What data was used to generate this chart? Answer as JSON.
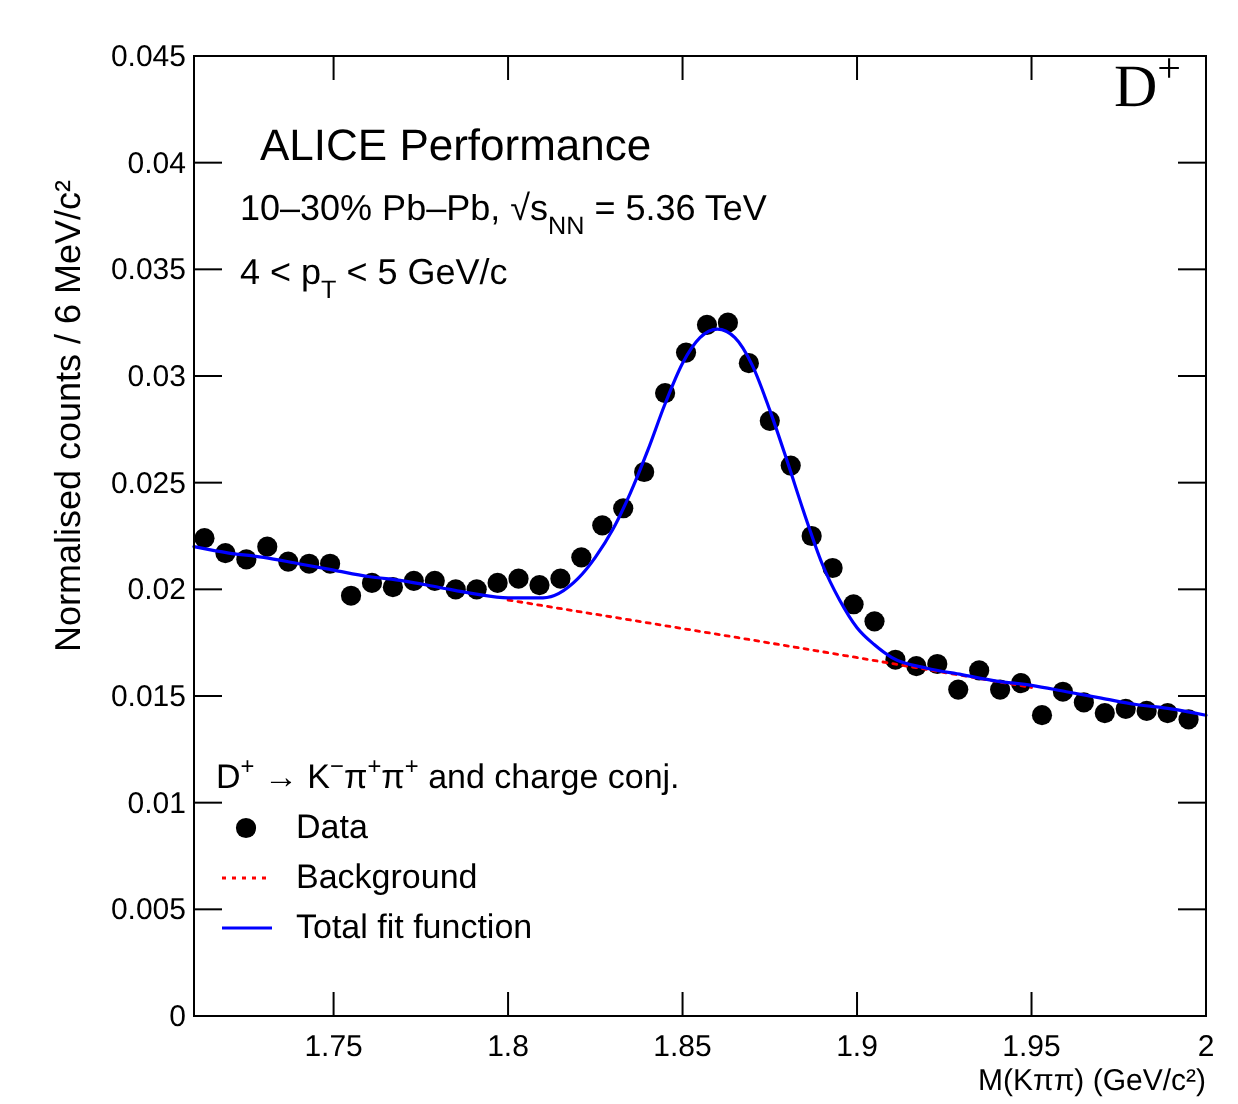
{
  "chart_data": {
    "type": "scatter",
    "xlabel": "M(Kππ) (GeV/c²)",
    "ylabel": "Normalised counts / 6 MeV/c²",
    "annotations": [
      "ALICE Performance",
      "10–30% Pb–Pb, √s$_{NN}$ = 5.36 TeV",
      "4 < p$_{T}$ < 5 GeV/c",
      "D$^{+}$"
    ],
    "legend_title": "D$^{+}$ → K$^{−}$π$^{+}$π$^{+}$ and charge conj.",
    "legend": "bottom left",
    "grid": false,
    "xlim": [
      1.71,
      2.0
    ],
    "xticks": [
      1.75,
      1.8,
      1.85,
      1.9,
      1.95,
      2
    ],
    "ylim": [
      0,
      0.045
    ],
    "yticks": [
      0,
      0.005,
      0.01,
      0.015,
      0.02,
      0.025,
      0.03,
      0.035,
      0.04,
      0.045
    ],
    "series": [
      {
        "name": "Data",
        "marker": "circle",
        "color": "#000000",
        "x": [
          1.713,
          1.719,
          1.725,
          1.731,
          1.737,
          1.743,
          1.749,
          1.755,
          1.761,
          1.767,
          1.773,
          1.779,
          1.785,
          1.791,
          1.797,
          1.803,
          1.809,
          1.815,
          1.821,
          1.827,
          1.833,
          1.839,
          1.845,
          1.851,
          1.857,
          1.863,
          1.869,
          1.875,
          1.881,
          1.887,
          1.893,
          1.899,
          1.905,
          1.911,
          1.917,
          1.923,
          1.929,
          1.935,
          1.941,
          1.947,
          1.953,
          1.959,
          1.965,
          1.971,
          1.977,
          1.983,
          1.989,
          1.995
        ],
        "values": [
          0.0224,
          0.0217,
          0.0214,
          0.022,
          0.0213,
          0.0212,
          0.0212,
          0.0197,
          0.0203,
          0.0201,
          0.0204,
          0.0204,
          0.02,
          0.02,
          0.0203,
          0.0205,
          0.0202,
          0.0205,
          0.0215,
          0.023,
          0.0238,
          0.0255,
          0.0292,
          0.0311,
          0.0324,
          0.0325,
          0.0306,
          0.0279,
          0.0258,
          0.0225,
          0.021,
          0.0193,
          0.0185,
          0.0167,
          0.0164,
          0.0165,
          0.0153,
          0.0162,
          0.0153,
          0.0156,
          0.0141,
          0.0152,
          0.0147,
          0.0142,
          0.0144,
          0.0143,
          0.0142,
          0.0139
        ]
      },
      {
        "name": "Background",
        "type": "line",
        "line_style": "dotted",
        "color": "#ff0000",
        "x": [
          1.8,
          1.9,
          1.95
        ],
        "values": [
          0.0195,
          0.0168,
          0.0154
        ]
      },
      {
        "name": "Total fit function",
        "type": "line",
        "line_style": "solid",
        "color": "#0000ff",
        "x": [
          1.71,
          1.72,
          1.73,
          1.74,
          1.75,
          1.76,
          1.77,
          1.78,
          1.79,
          1.8,
          1.81,
          1.82,
          1.825,
          1.83,
          1.835,
          1.84,
          1.845,
          1.85,
          1.855,
          1.86,
          1.865,
          1.87,
          1.875,
          1.88,
          1.885,
          1.89,
          1.895,
          1.9,
          1.905,
          1.91,
          1.92,
          1.93,
          1.94,
          1.95,
          1.96,
          1.97,
          1.98,
          1.99,
          2.0
        ],
        "values": [
          0.022,
          0.0217,
          0.0215,
          0.0212,
          0.0209,
          0.0206,
          0.0204,
          0.0201,
          0.0198,
          0.0196,
          0.0196,
          0.0205,
          0.0215,
          0.0228,
          0.0245,
          0.0265,
          0.0287,
          0.0306,
          0.0318,
          0.0322,
          0.0318,
          0.0305,
          0.0284,
          0.026,
          0.0235,
          0.0212,
          0.0195,
          0.0182,
          0.0174,
          0.0168,
          0.0163,
          0.016,
          0.0157,
          0.0155,
          0.0152,
          0.0149,
          0.0146,
          0.0144,
          0.0141
        ]
      }
    ]
  }
}
